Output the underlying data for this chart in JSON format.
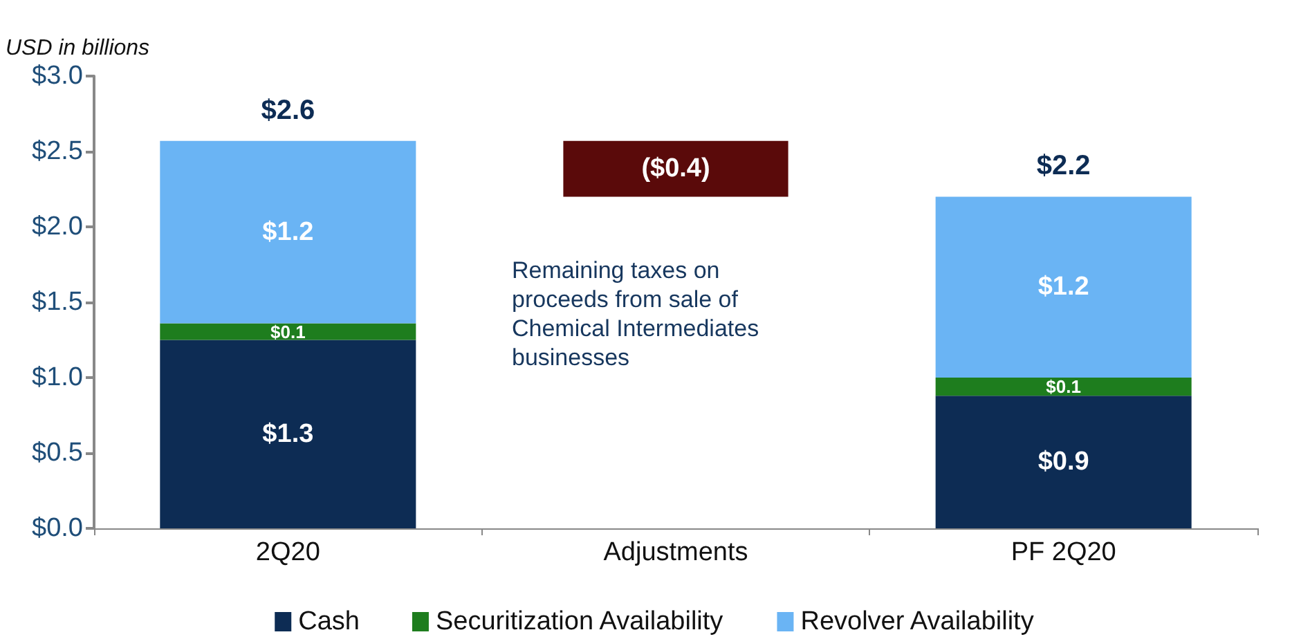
{
  "chart_data": {
    "type": "bar",
    "stacked": true,
    "ylabel": "USD in billions",
    "categories": [
      "2Q20",
      "Adjustments",
      "PF 2Q20"
    ],
    "series": [
      {
        "name": "Cash",
        "color": "#0d2c54",
        "values": [
          1.25,
          null,
          0.88
        ],
        "value_labels": [
          "$1.3",
          null,
          "$0.9"
        ]
      },
      {
        "name": "Securitization Availability",
        "color": "#1e7d1e",
        "values": [
          0.11,
          null,
          0.12
        ],
        "value_labels": [
          "$0.1",
          null,
          "$0.1"
        ]
      },
      {
        "name": "Revolver Availability",
        "color": "#6ab4f4",
        "values": [
          1.21,
          null,
          1.2
        ],
        "value_labels": [
          "$1.2",
          null,
          "$1.2"
        ]
      },
      {
        "color": "#5a0a0a",
        "values": [
          null,
          -0.37,
          null
        ],
        "base": [
          null,
          2.57,
          null
        ],
        "value_labels": [
          null,
          "($0.4)",
          null
        ]
      }
    ],
    "totals": [
      "$2.6",
      null,
      "$2.2"
    ],
    "ylim": [
      0,
      3
    ],
    "yticks": [
      {
        "value": 0,
        "label": "$0.0"
      },
      {
        "value": 0.5,
        "label": "$0.5"
      },
      {
        "value": 1,
        "label": "$1.0"
      },
      {
        "value": 1.5,
        "label": "$1.5"
      },
      {
        "value": 2,
        "label": "$2.0"
      },
      {
        "value": 2.5,
        "label": "$2.5"
      },
      {
        "value": 3,
        "label": "$3.0"
      }
    ],
    "annotations": [
      "Remaining taxes on proceeds from sale of Chemical Intermediates businesses"
    ],
    "grid": false,
    "legend": "bottom"
  }
}
